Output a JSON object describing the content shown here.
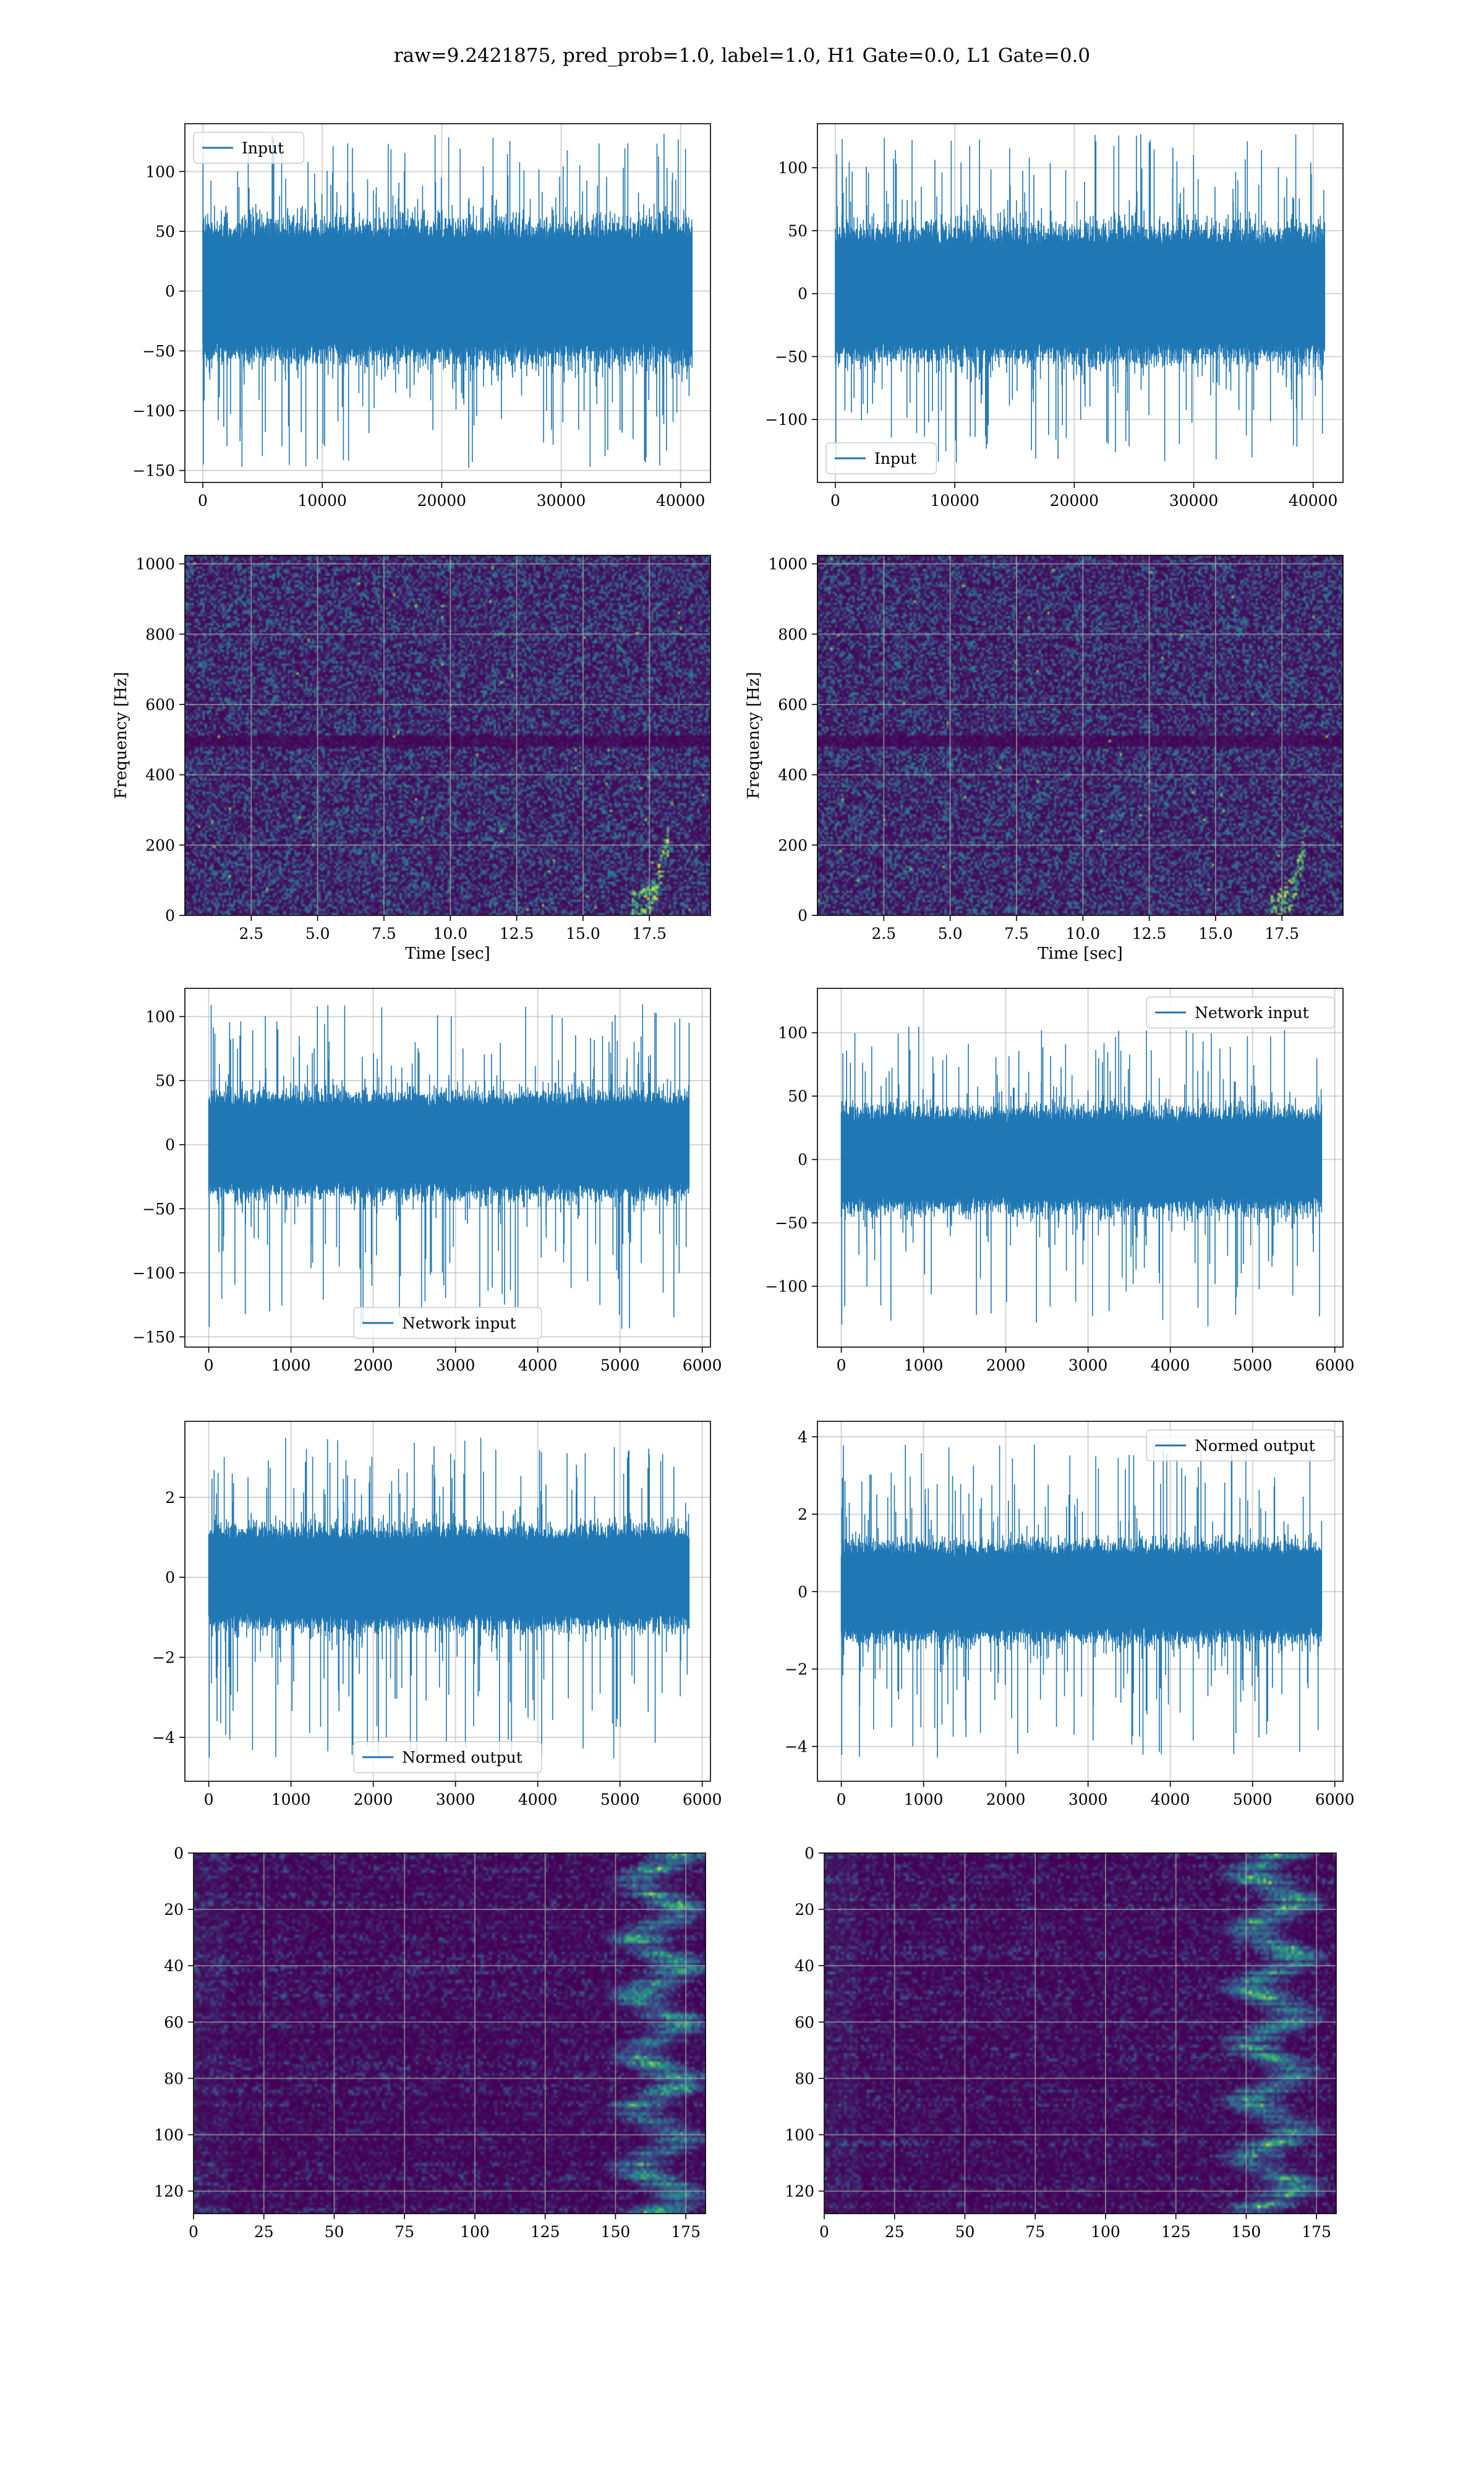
{
  "figure": {
    "suptitle": "raw=9.2421875, pred_prob=1.0, label=1.0, H1 Gate=0.0, L1 Gate=0.0",
    "colors": {
      "line": "#1f77b4",
      "grid": "#b0b0b0",
      "spine": "#000000",
      "cmap_low": "#440154",
      "cmap_mid": "#21918c",
      "cmap_high": "#fde725"
    }
  },
  "chart_data": [
    {
      "type": "line",
      "xlim": [
        -1500,
        42500
      ],
      "ylim": [
        -160,
        140
      ],
      "xticks": [
        0,
        10000,
        20000,
        30000,
        40000
      ],
      "yticks": [
        -150,
        -100,
        -50,
        0,
        50,
        100
      ],
      "xlabel": "",
      "ylabel": "",
      "legend": {
        "label": "Input",
        "position": "upper-left"
      },
      "signal": {
        "n": 40960,
        "x_start": 0,
        "x_end": 40960,
        "band": 58,
        "spike_max": 132,
        "spike_min": -148
      },
      "grid": true
    },
    {
      "type": "line",
      "xlim": [
        -1500,
        42500
      ],
      "ylim": [
        -150,
        135
      ],
      "xticks": [
        0,
        10000,
        20000,
        30000,
        40000
      ],
      "yticks": [
        -100,
        -50,
        0,
        50,
        100
      ],
      "xlabel": "",
      "ylabel": "",
      "legend": {
        "label": "Input",
        "position": "lower-left"
      },
      "signal": {
        "n": 40960,
        "x_start": 0,
        "x_end": 40960,
        "band": 52,
        "spike_max": 127,
        "spike_min": -135
      },
      "grid": true
    },
    {
      "type": "heatmap",
      "xlim": [
        0,
        19.8
      ],
      "ylim": [
        0,
        1024
      ],
      "xticks": [
        2.5,
        5.0,
        7.5,
        10.0,
        12.5,
        15.0,
        17.5
      ],
      "yticks": [
        0,
        200,
        400,
        600,
        800,
        1000
      ],
      "xtick_labels": [
        "2.5",
        "5.0",
        "7.5",
        "10.0",
        "12.5",
        "15.0",
        "17.5"
      ],
      "xlabel": "Time [sec]",
      "ylabel": "Frequency [Hz]",
      "grid": true,
      "chirp_time": 18.0,
      "dark_band_hz": 500
    },
    {
      "type": "heatmap",
      "xlim": [
        0,
        19.8
      ],
      "ylim": [
        0,
        1024
      ],
      "xticks": [
        2.5,
        5.0,
        7.5,
        10.0,
        12.5,
        15.0,
        17.5
      ],
      "yticks": [
        0,
        200,
        400,
        600,
        800,
        1000
      ],
      "xtick_labels": [
        "2.5",
        "5.0",
        "7.5",
        "10.0",
        "12.5",
        "15.0",
        "17.5"
      ],
      "xlabel": "Time [sec]",
      "ylabel": "Frequency [Hz]",
      "grid": true,
      "chirp_time": 18.2,
      "dark_band_hz": 500
    },
    {
      "type": "line",
      "xlim": [
        -290,
        6100
      ],
      "ylim": [
        -158,
        122
      ],
      "xticks": [
        0,
        1000,
        2000,
        3000,
        4000,
        5000,
        6000
      ],
      "yticks": [
        -150,
        -100,
        -50,
        0,
        50,
        100
      ],
      "xlabel": "",
      "ylabel": "",
      "legend": {
        "label": "Network input",
        "position": "lower-center"
      },
      "signal": {
        "n": 5840,
        "x_start": 0,
        "x_end": 5840,
        "band": 40,
        "spike_max": 110,
        "spike_min": -145
      },
      "grid": true
    },
    {
      "type": "line",
      "xlim": [
        -290,
        6100
      ],
      "ylim": [
        -148,
        135
      ],
      "xticks": [
        0,
        1000,
        2000,
        3000,
        4000,
        5000,
        6000
      ],
      "yticks": [
        -100,
        -50,
        0,
        50,
        100
      ],
      "xlabel": "",
      "ylabel": "",
      "legend": {
        "label": "Network input",
        "position": "upper-right"
      },
      "signal": {
        "n": 5840,
        "x_start": 0,
        "x_end": 5840,
        "band": 40,
        "spike_max": 105,
        "spike_min": -133
      },
      "grid": true
    },
    {
      "type": "line",
      "xlim": [
        -290,
        6100
      ],
      "ylim": [
        -5.1,
        3.9
      ],
      "xticks": [
        0,
        1000,
        2000,
        3000,
        4000,
        5000,
        6000
      ],
      "yticks": [
        -4,
        -2,
        0,
        2
      ],
      "xlabel": "",
      "ylabel": "",
      "legend": {
        "label": "Normed output",
        "position": "lower-center"
      },
      "signal": {
        "n": 5840,
        "x_start": 0,
        "x_end": 5840,
        "band": 1.25,
        "spike_max": 3.5,
        "spike_min": -4.6
      },
      "grid": true
    },
    {
      "type": "line",
      "xlim": [
        -290,
        6100
      ],
      "ylim": [
        -4.9,
        4.4
      ],
      "xticks": [
        0,
        1000,
        2000,
        3000,
        4000,
        5000,
        6000
      ],
      "yticks": [
        -4,
        -2,
        0,
        2,
        4
      ],
      "xlabel": "",
      "ylabel": "",
      "legend": {
        "label": "Normed output",
        "position": "upper-right"
      },
      "signal": {
        "n": 5840,
        "x_start": 0,
        "x_end": 5840,
        "band": 1.25,
        "spike_max": 4.0,
        "spike_min": -4.3
      },
      "grid": true
    },
    {
      "type": "heatmap",
      "xlim": [
        0,
        182
      ],
      "ylim": [
        128,
        0
      ],
      "xticks": [
        0,
        25,
        50,
        75,
        100,
        125,
        150,
        175
      ],
      "yticks": [
        0,
        20,
        40,
        60,
        80,
        100,
        120
      ],
      "xtick_labels": [
        "0",
        "25",
        "50",
        "75",
        "100",
        "125",
        "150",
        "175"
      ],
      "xlabel": "",
      "ylabel": "",
      "grid": true,
      "bright_cols": [
        150,
        180
      ]
    },
    {
      "type": "heatmap",
      "xlim": [
        0,
        182
      ],
      "ylim": [
        128,
        0
      ],
      "xticks": [
        0,
        25,
        50,
        75,
        100,
        125,
        150,
        175
      ],
      "yticks": [
        0,
        20,
        40,
        60,
        80,
        100,
        120
      ],
      "xtick_labels": [
        "0",
        "25",
        "50",
        "75",
        "100",
        "125",
        "150",
        "175"
      ],
      "xlabel": "",
      "ylabel": "",
      "grid": true,
      "bright_cols": [
        140,
        178
      ]
    }
  ]
}
